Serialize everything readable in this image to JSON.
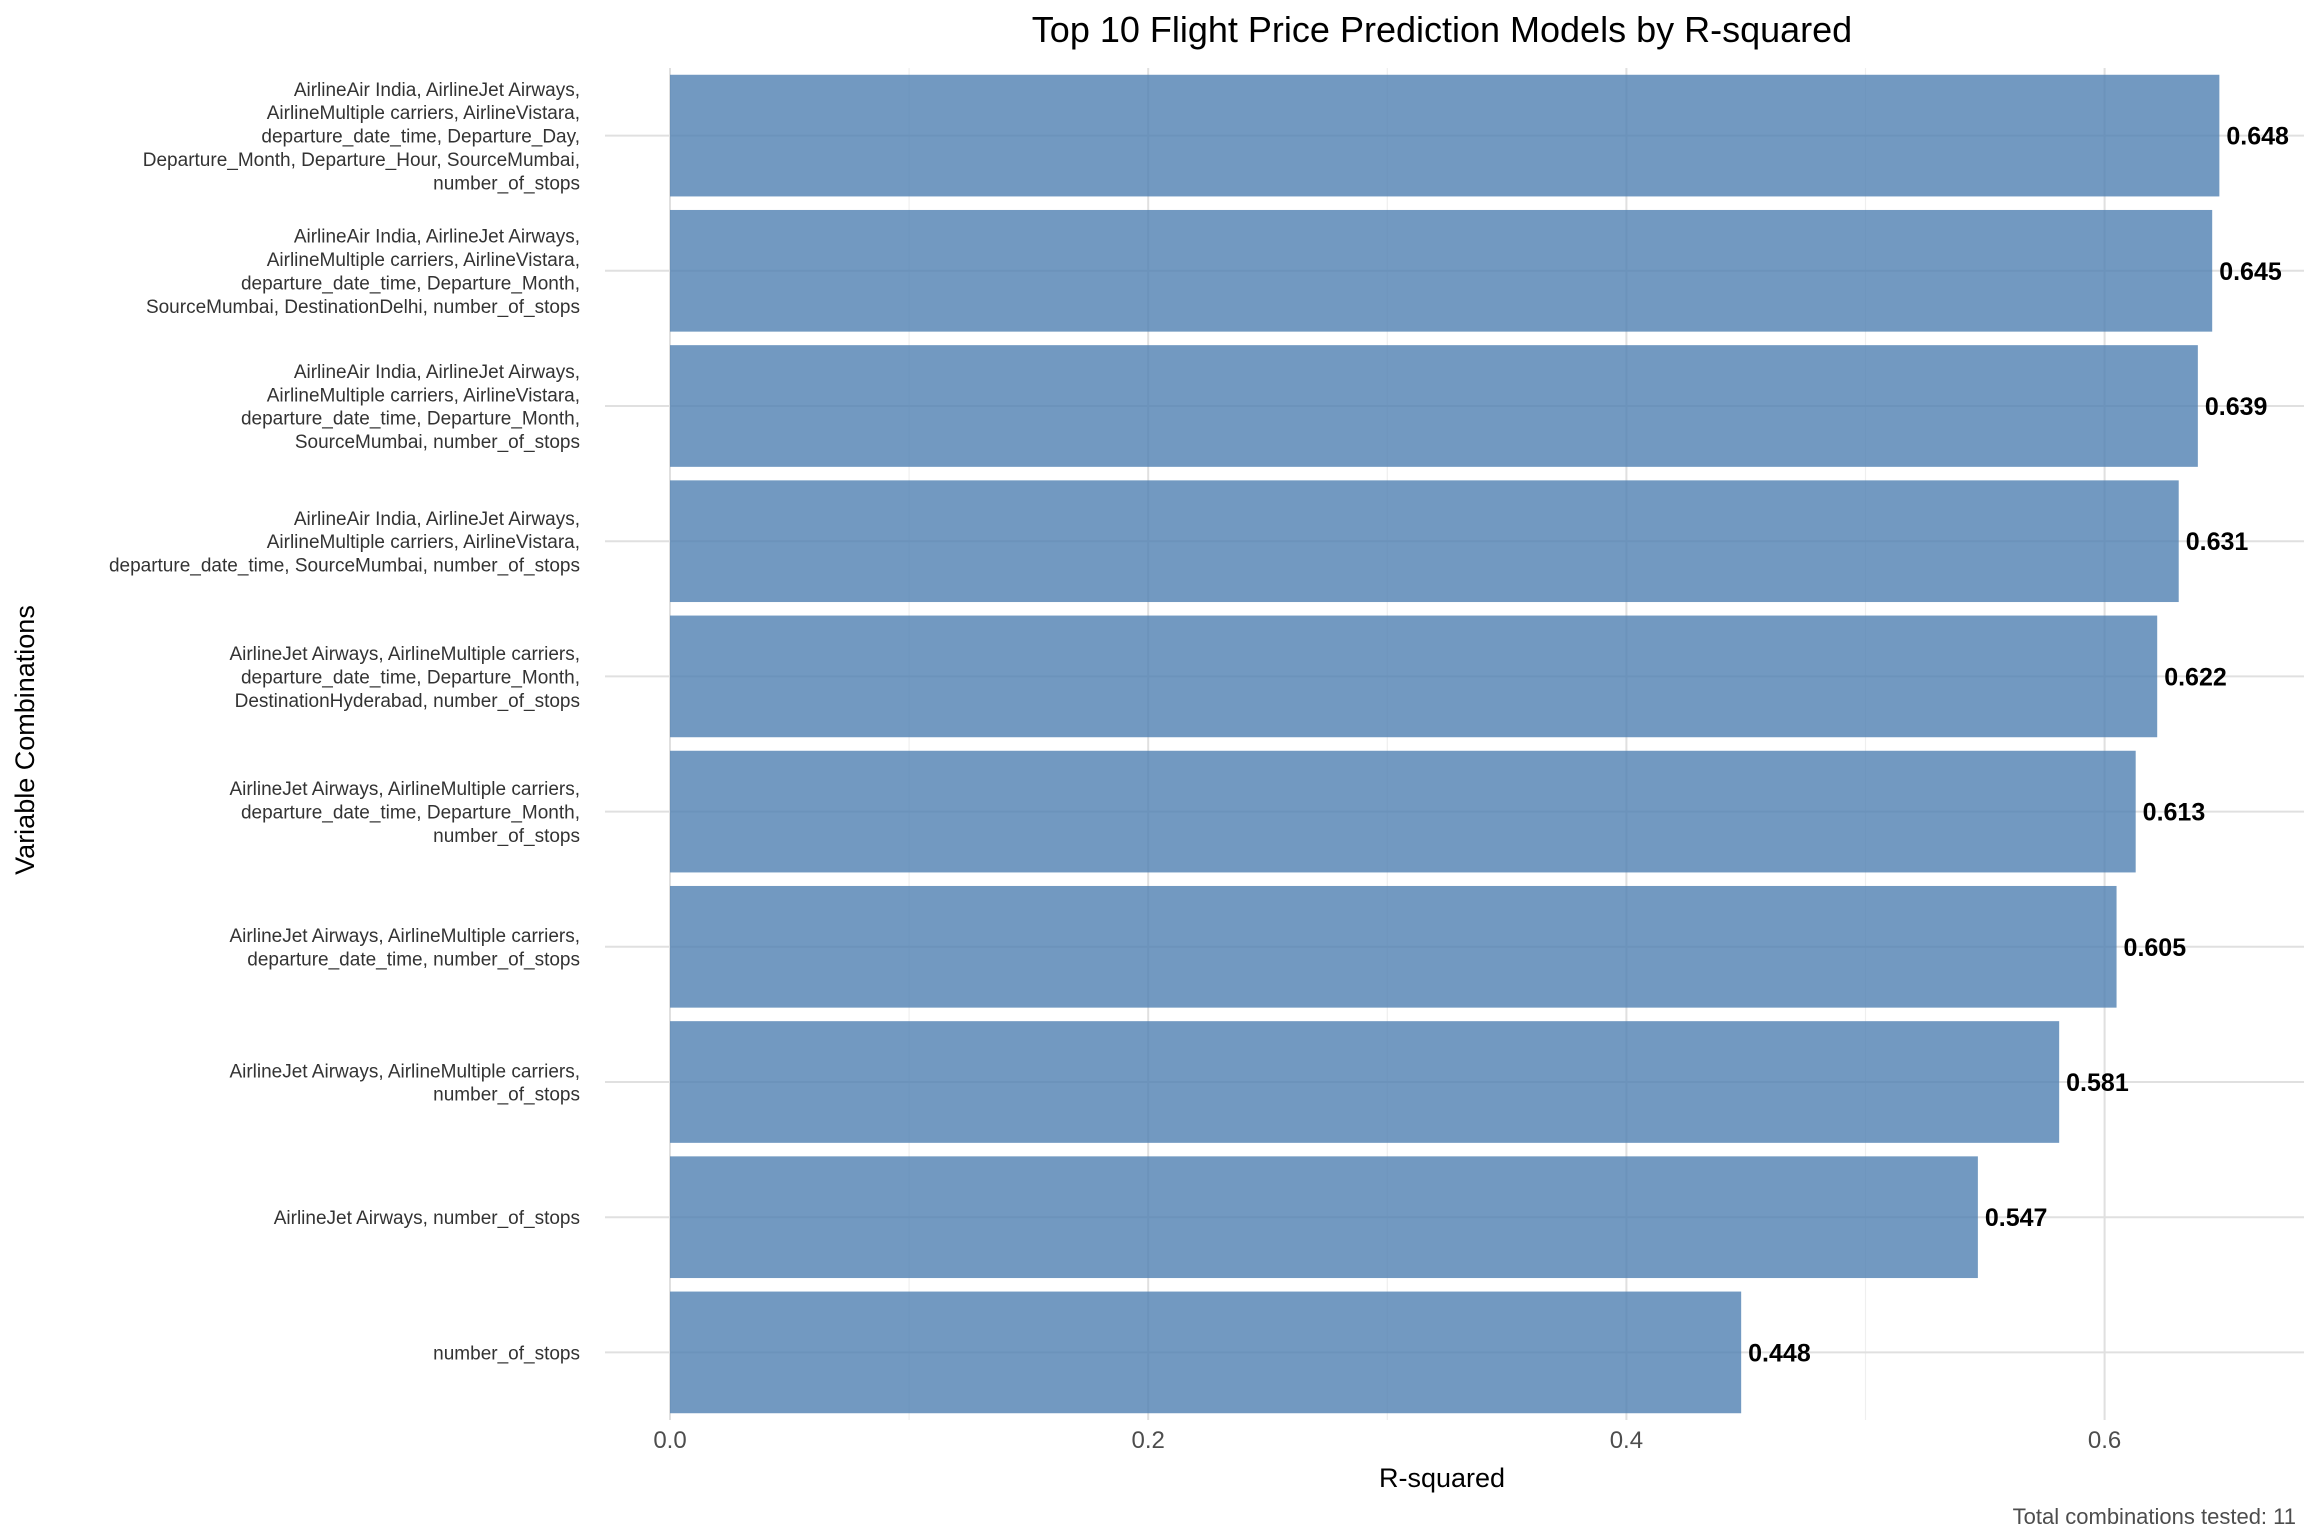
{
  "chart_data": {
    "type": "bar",
    "orientation": "horizontal",
    "title": "Top 10 Flight Price Prediction Models by R-squared",
    "xlabel": "R-squared",
    "ylabel": "Variable Combinations",
    "xlim": [
      0,
      0.67
    ],
    "x_ticks": [
      0.0,
      0.2,
      0.4,
      0.6
    ],
    "x_tick_labels": [
      "0.0",
      "0.2",
      "0.4",
      "0.6"
    ],
    "grid": true,
    "bar_color": "#4f7fb2",
    "categories": [
      [
        "AirlineAir India, AirlineJet Airways,",
        "AirlineMultiple carriers, AirlineVistara,",
        "departure_date_time, Departure_Day,",
        "Departure_Month, Departure_Hour, SourceMumbai,",
        "number_of_stops"
      ],
      [
        "AirlineAir India, AirlineJet Airways,",
        "AirlineMultiple carriers, AirlineVistara,",
        "departure_date_time, Departure_Month,",
        "SourceMumbai, DestinationDelhi, number_of_stops"
      ],
      [
        "AirlineAir India, AirlineJet Airways,",
        "AirlineMultiple carriers, AirlineVistara,",
        "departure_date_time, Departure_Month,",
        "SourceMumbai, number_of_stops"
      ],
      [
        "AirlineAir India, AirlineJet Airways,",
        "AirlineMultiple carriers, AirlineVistara,",
        "departure_date_time, SourceMumbai, number_of_stops"
      ],
      [
        "AirlineJet Airways, AirlineMultiple carriers,",
        "departure_date_time, Departure_Month,",
        "DestinationHyderabad, number_of_stops"
      ],
      [
        "AirlineJet Airways, AirlineMultiple carriers,",
        "departure_date_time, Departure_Month,",
        "number_of_stops"
      ],
      [
        "AirlineJet Airways, AirlineMultiple carriers,",
        "departure_date_time, number_of_stops"
      ],
      [
        "AirlineJet Airways, AirlineMultiple carriers,",
        "number_of_stops"
      ],
      [
        "AirlineJet Airways, number_of_stops"
      ],
      [
        "number_of_stops"
      ]
    ],
    "values": [
      0.648,
      0.645,
      0.639,
      0.631,
      0.622,
      0.613,
      0.605,
      0.581,
      0.547,
      0.448
    ],
    "value_labels": [
      "0.648",
      "0.645",
      "0.639",
      "0.631",
      "0.622",
      "0.613",
      "0.605",
      "0.581",
      "0.547",
      "0.448"
    ],
    "caption": "Total combinations tested: 11"
  }
}
